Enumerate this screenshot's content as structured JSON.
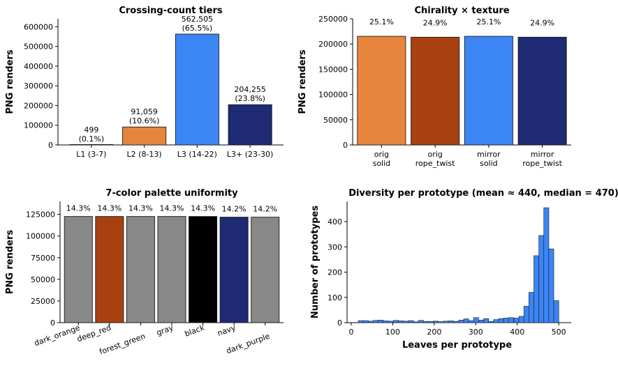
{
  "colors": {
    "orange": "#E8853D",
    "rust": "#A8410F",
    "blue": "#3B85F5",
    "navy": "#1E2A73",
    "gray": "#888888",
    "black": "#000000"
  },
  "chart_data": [
    {
      "type": "bar",
      "title": "Crossing-count tiers",
      "ylabel": "PNG renders",
      "xlabel": "",
      "categories": [
        "L1 (3-7)",
        "L2 (8-13)",
        "L3 (14-22)",
        "L3+ (23-30)"
      ],
      "values": [
        499,
        91059,
        562505,
        204255
      ],
      "value_labels": [
        "499",
        "91,059",
        "562,505",
        "204,255"
      ],
      "pct_labels": [
        "(0.1%)",
        "(10.6%)",
        "(65.5%)",
        "(23.8%)"
      ],
      "bar_colors": [
        "#E8853D",
        "#E8853D",
        "#3B85F5",
        "#1E2A73"
      ],
      "ylim": [
        0,
        640000
      ],
      "yticks": [
        0,
        100000,
        200000,
        300000,
        400000,
        500000,
        600000
      ],
      "grid": false
    },
    {
      "type": "bar",
      "title": "Chirality × texture",
      "ylabel": "PNG renders",
      "xlabel": "",
      "categories": [
        [
          "orig",
          "solid"
        ],
        [
          "orig",
          "rope_twist"
        ],
        [
          "mirror",
          "solid"
        ],
        [
          "mirror",
          "rope_twist"
        ]
      ],
      "values": [
        215300,
        213600,
        215300,
        213600
      ],
      "value_labels": [
        "25.1%",
        "24.9%",
        "25.1%",
        "24.9%"
      ],
      "bar_colors": [
        "#E8853D",
        "#A8410F",
        "#3B85F5",
        "#1E2A73"
      ],
      "ylim": [
        0,
        250000
      ],
      "yticks": [
        0,
        50000,
        100000,
        150000,
        200000,
        250000
      ],
      "grid": false
    },
    {
      "type": "bar",
      "title": "7-color palette uniformity",
      "ylabel": "PNG renders",
      "xlabel": "",
      "categories": [
        "dark_orange",
        "deep_red",
        "forest_green",
        "gray",
        "black",
        "navy",
        "dark_purple"
      ],
      "values": [
        122600,
        122600,
        122600,
        122600,
        122600,
        121800,
        121800
      ],
      "value_labels": [
        "14.3%",
        "14.3%",
        "14.3%",
        "14.3%",
        "14.3%",
        "14.2%",
        "14.2%"
      ],
      "bar_colors": [
        "#888888",
        "#A8410F",
        "#888888",
        "#888888",
        "#000000",
        "#1E2A73",
        "#888888"
      ],
      "ylim": [
        0,
        140000
      ],
      "yticks": [
        0,
        25000,
        50000,
        75000,
        100000,
        125000
      ],
      "grid": false
    },
    {
      "type": "bar",
      "title": "Diversity per prototype  (mean ≈ 440, median = 470)",
      "xlabel": "Leaves per prototype",
      "ylabel": "Number of prototypes",
      "bin_width": 12.1,
      "x": [
        23,
        35,
        47,
        59,
        71,
        83,
        95,
        108,
        120,
        132,
        144,
        156,
        168,
        180,
        192,
        204,
        216,
        228,
        240,
        253,
        265,
        277,
        289,
        301,
        313,
        325,
        337,
        349,
        361,
        373,
        385,
        398,
        410,
        422,
        434,
        446,
        458,
        470,
        482,
        494
      ],
      "values": [
        8,
        8,
        6,
        9,
        10,
        7,
        6,
        9,
        7,
        6,
        8,
        3,
        9,
        5,
        5,
        6,
        4,
        6,
        7,
        5,
        10,
        15,
        8,
        20,
        10,
        16,
        5,
        12,
        16,
        18,
        20,
        18,
        25,
        65,
        120,
        265,
        345,
        455,
        292,
        87
      ],
      "bar_colors": [
        "#3B85F5"
      ],
      "xlim": [
        -10,
        530
      ],
      "ylim": [
        0,
        480
      ],
      "xticks": [
        0,
        100,
        200,
        300,
        400,
        500
      ],
      "yticks": [
        0,
        100,
        200,
        300,
        400
      ],
      "grid": false
    }
  ]
}
